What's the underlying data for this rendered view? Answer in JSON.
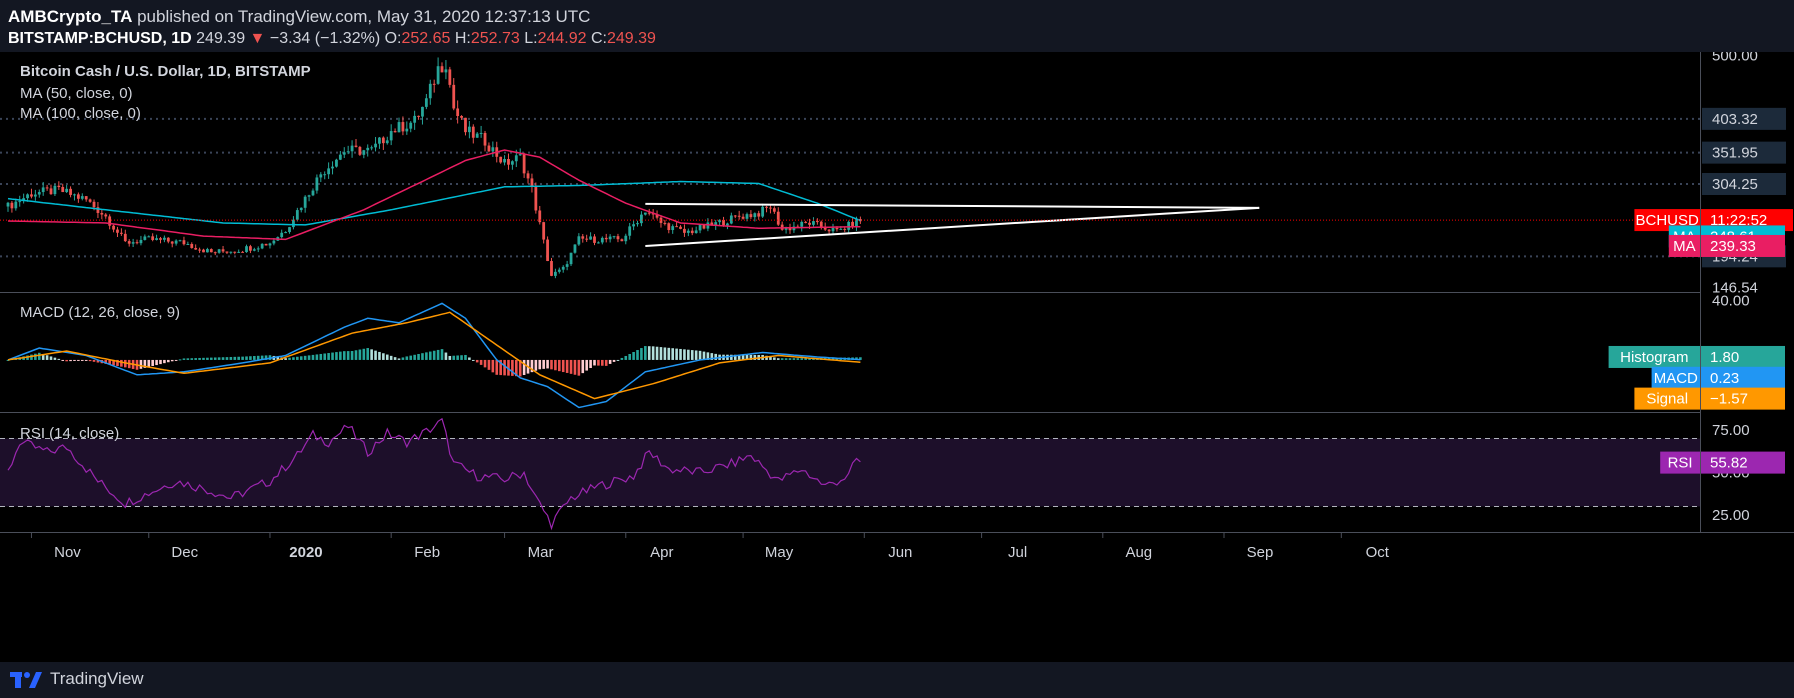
{
  "header": {
    "author": "AMBCrypto_TA",
    "published_text": "published on TradingView.com, May 31, 2020 12:37:13 UTC",
    "symbol": "BITSTAMP:BCHUSD, 1D",
    "last": "249.39",
    "down_arrow": "▼",
    "change": "−3.34 (−1.32%)",
    "o_label": "O:",
    "o_value": "252.65",
    "h_label": "H:",
    "h_value": "252.73",
    "l_label": "L:",
    "l_value": "244.92",
    "c_label": "C:",
    "c_value": "249.39"
  },
  "footer": {
    "brand": "TradingView",
    "logo_icon": "tradingview-logo-icon"
  },
  "colors": {
    "background": "#131722",
    "grid": "#2a2e39",
    "up": "#26a69a",
    "down": "#ef5350",
    "ma50": "#e91e63",
    "ma100": "#00bcd4",
    "macd": "#2196f3",
    "signal": "#ff9800",
    "hist_pos": "#26a69a",
    "hist_neg": "#ef5350",
    "rsi": "#9c27b0",
    "rsi_band": "#1d0f2a",
    "trendline": "#ffffff",
    "price_line": "#ff0000"
  },
  "chart_data": {
    "type": "candlestick",
    "title": "Bitcoin Cash / U.S. Dollar, 1D, BITSTAMP",
    "x_axis_labels": [
      "Nov",
      "Dec",
      "2020",
      "Feb",
      "Mar",
      "Apr",
      "May",
      "Jun",
      "Jul",
      "Aug",
      "Sep",
      "Oct"
    ],
    "x_axis_bold": [
      "2020"
    ],
    "price_pane": {
      "indicators": [
        "MA (50, close, 0)",
        "MA (100, close, 0)"
      ],
      "y_ticks": [
        "500.00",
        "403.32",
        "351.95",
        "304.25",
        "194.24",
        "146.54"
      ],
      "grid_levels": [
        403.32,
        351.95,
        304.25,
        194.24
      ],
      "ylim": [
        140,
        505
      ],
      "close_anchors": [
        {
          "d": "2019-10-26",
          "v": 270
        },
        {
          "d": "2019-11-01",
          "v": 290
        },
        {
          "d": "2019-11-08",
          "v": 295
        },
        {
          "d": "2019-11-15",
          "v": 280
        },
        {
          "d": "2019-11-20",
          "v": 255
        },
        {
          "d": "2019-11-25",
          "v": 215
        },
        {
          "d": "2019-12-01",
          "v": 220
        },
        {
          "d": "2019-12-10",
          "v": 215
        },
        {
          "d": "2019-12-17",
          "v": 200
        },
        {
          "d": "2019-12-25",
          "v": 205
        },
        {
          "d": "2020-01-01",
          "v": 215
        },
        {
          "d": "2020-01-05",
          "v": 235
        },
        {
          "d": "2020-01-14",
          "v": 320
        },
        {
          "d": "2020-01-20",
          "v": 355
        },
        {
          "d": "2020-01-27",
          "v": 355
        },
        {
          "d": "2020-02-01",
          "v": 385
        },
        {
          "d": "2020-02-07",
          "v": 400
        },
        {
          "d": "2020-02-10",
          "v": 430
        },
        {
          "d": "2020-02-13",
          "v": 480
        },
        {
          "d": "2020-02-15",
          "v": 490
        },
        {
          "d": "2020-02-17",
          "v": 420
        },
        {
          "d": "2020-02-20",
          "v": 385
        },
        {
          "d": "2020-02-25",
          "v": 370
        },
        {
          "d": "2020-03-01",
          "v": 335
        },
        {
          "d": "2020-03-05",
          "v": 345
        },
        {
          "d": "2020-03-08",
          "v": 295
        },
        {
          "d": "2020-03-12",
          "v": 190
        },
        {
          "d": "2020-03-13",
          "v": 165
        },
        {
          "d": "2020-03-16",
          "v": 175
        },
        {
          "d": "2020-03-20",
          "v": 220
        },
        {
          "d": "2020-03-31",
          "v": 220
        },
        {
          "d": "2020-04-06",
          "v": 265
        },
        {
          "d": "2020-04-10",
          "v": 245
        },
        {
          "d": "2020-04-16",
          "v": 230
        },
        {
          "d": "2020-04-22",
          "v": 240
        },
        {
          "d": "2020-04-30",
          "v": 255
        },
        {
          "d": "2020-05-05",
          "v": 260
        },
        {
          "d": "2020-05-08",
          "v": 270
        },
        {
          "d": "2020-05-11",
          "v": 235
        },
        {
          "d": "2020-05-18",
          "v": 245
        },
        {
          "d": "2020-05-25",
          "v": 232
        },
        {
          "d": "2020-05-31",
          "v": 249.39
        }
      ],
      "ma50_anchors": [
        {
          "d": "2019-10-26",
          "v": 248
        },
        {
          "d": "2019-11-20",
          "v": 245
        },
        {
          "d": "2019-12-15",
          "v": 225
        },
        {
          "d": "2020-01-05",
          "v": 220
        },
        {
          "d": "2020-01-25",
          "v": 265
        },
        {
          "d": "2020-02-20",
          "v": 340
        },
        {
          "d": "2020-03-01",
          "v": 356
        },
        {
          "d": "2020-03-10",
          "v": 345
        },
        {
          "d": "2020-03-20",
          "v": 310
        },
        {
          "d": "2020-04-01",
          "v": 275
        },
        {
          "d": "2020-04-15",
          "v": 245
        },
        {
          "d": "2020-05-05",
          "v": 237
        },
        {
          "d": "2020-05-31",
          "v": 239.33
        }
      ],
      "ma100_anchors": [
        {
          "d": "2019-10-26",
          "v": 282
        },
        {
          "d": "2019-11-20",
          "v": 265
        },
        {
          "d": "2019-12-20",
          "v": 245
        },
        {
          "d": "2020-01-10",
          "v": 242
        },
        {
          "d": "2020-02-01",
          "v": 265
        },
        {
          "d": "2020-03-01",
          "v": 300
        },
        {
          "d": "2020-03-20",
          "v": 302
        },
        {
          "d": "2020-04-15",
          "v": 308
        },
        {
          "d": "2020-05-05",
          "v": 305
        },
        {
          "d": "2020-05-20",
          "v": 275
        },
        {
          "d": "2020-05-31",
          "v": 248.61
        }
      ],
      "trendlines": [
        {
          "from": {
            "d": "2020-04-06",
            "v": 274
          },
          "to": {
            "d": "2020-09-10",
            "v": 268
          }
        },
        {
          "from": {
            "d": "2020-04-06",
            "v": 210
          },
          "to": {
            "d": "2020-09-10",
            "v": 268
          }
        }
      ],
      "price_line": 249.39,
      "labels": [
        {
          "text": "BCHUSD",
          "value": "11:22:52",
          "bg": "#ff0000",
          "y": 249.39
        },
        {
          "text": "MA",
          "value": "248.61",
          "bg": "#00bcd4",
          "y": 224.5
        },
        {
          "text": "MA",
          "value": "239.33",
          "bg": "#e91e63",
          "y": 210
        }
      ]
    },
    "macd_pane": {
      "indicator": "MACD (12, 26, close, 9)",
      "y_ticks": [
        "40.00"
      ],
      "ylim": [
        -35,
        45
      ],
      "macd_anchors": [
        {
          "d": "2019-10-26",
          "v": 0
        },
        {
          "d": "2019-11-03",
          "v": 8
        },
        {
          "d": "2019-11-15",
          "v": 3
        },
        {
          "d": "2019-11-28",
          "v": -10
        },
        {
          "d": "2019-12-10",
          "v": -8
        },
        {
          "d": "2019-12-25",
          "v": -2
        },
        {
          "d": "2020-01-05",
          "v": 3
        },
        {
          "d": "2020-01-20",
          "v": 22
        },
        {
          "d": "2020-01-26",
          "v": 28
        },
        {
          "d": "2020-02-03",
          "v": 25
        },
        {
          "d": "2020-02-14",
          "v": 38
        },
        {
          "d": "2020-02-20",
          "v": 28
        },
        {
          "d": "2020-02-28",
          "v": 0
        },
        {
          "d": "2020-03-05",
          "v": -12
        },
        {
          "d": "2020-03-12",
          "v": -18
        },
        {
          "d": "2020-03-20",
          "v": -32
        },
        {
          "d": "2020-03-27",
          "v": -28
        },
        {
          "d": "2020-04-06",
          "v": -8
        },
        {
          "d": "2020-04-20",
          "v": 0
        },
        {
          "d": "2020-05-06",
          "v": 5
        },
        {
          "d": "2020-05-20",
          "v": 2
        },
        {
          "d": "2020-05-31",
          "v": 0.23
        }
      ],
      "signal_anchors": [
        {
          "d": "2019-10-26",
          "v": 0
        },
        {
          "d": "2019-11-10",
          "v": 6
        },
        {
          "d": "2019-11-25",
          "v": -2
        },
        {
          "d": "2019-12-10",
          "v": -9
        },
        {
          "d": "2020-01-01",
          "v": -2
        },
        {
          "d": "2020-01-22",
          "v": 18
        },
        {
          "d": "2020-02-05",
          "v": 25
        },
        {
          "d": "2020-02-16",
          "v": 32
        },
        {
          "d": "2020-02-28",
          "v": 10
        },
        {
          "d": "2020-03-10",
          "v": -10
        },
        {
          "d": "2020-03-24",
          "v": -26
        },
        {
          "d": "2020-04-08",
          "v": -16
        },
        {
          "d": "2020-04-25",
          "v": -2
        },
        {
          "d": "2020-05-10",
          "v": 3
        },
        {
          "d": "2020-05-31",
          "v": -1.57
        }
      ],
      "labels": [
        {
          "text": "Histogram",
          "value": "1.80",
          "bg": "#26a69a",
          "y": 2
        },
        {
          "text": "MACD",
          "value": "0.23",
          "bg": "#2196f3",
          "y": -12
        },
        {
          "text": "Signal",
          "value": "−1.57",
          "bg": "#ff9800",
          "y": -26
        }
      ]
    },
    "rsi_pane": {
      "indicator": "RSI (14, close)",
      "y_ticks": [
        "75.00",
        "50.00",
        "25.00"
      ],
      "bands": [
        70,
        30
      ],
      "ylim": [
        15,
        85
      ],
      "rsi_anchors": [
        {
          "d": "2019-10-26",
          "v": 50
        },
        {
          "d": "2019-10-29",
          "v": 68
        },
        {
          "d": "2019-11-05",
          "v": 62
        },
        {
          "d": "2019-11-10",
          "v": 65
        },
        {
          "d": "2019-11-18",
          "v": 45
        },
        {
          "d": "2019-11-25",
          "v": 32
        },
        {
          "d": "2019-12-01",
          "v": 38
        },
        {
          "d": "2019-12-08",
          "v": 45
        },
        {
          "d": "2019-12-16",
          "v": 40
        },
        {
          "d": "2019-12-22",
          "v": 35
        },
        {
          "d": "2020-01-01",
          "v": 45
        },
        {
          "d": "2020-01-08",
          "v": 60
        },
        {
          "d": "2020-01-12",
          "v": 72
        },
        {
          "d": "2020-01-16",
          "v": 68
        },
        {
          "d": "2020-01-21",
          "v": 77
        },
        {
          "d": "2020-01-26",
          "v": 62
        },
        {
          "d": "2020-01-31",
          "v": 73
        },
        {
          "d": "2020-02-05",
          "v": 68
        },
        {
          "d": "2020-02-10",
          "v": 74
        },
        {
          "d": "2020-02-14",
          "v": 80
        },
        {
          "d": "2020-02-17",
          "v": 55
        },
        {
          "d": "2020-02-23",
          "v": 48
        },
        {
          "d": "2020-03-01",
          "v": 46
        },
        {
          "d": "2020-03-06",
          "v": 50
        },
        {
          "d": "2020-03-09",
          "v": 35
        },
        {
          "d": "2020-03-13",
          "v": 20
        },
        {
          "d": "2020-03-18",
          "v": 35
        },
        {
          "d": "2020-03-25",
          "v": 42
        },
        {
          "d": "2020-04-03",
          "v": 48
        },
        {
          "d": "2020-04-07",
          "v": 62
        },
        {
          "d": "2020-04-12",
          "v": 52
        },
        {
          "d": "2020-04-20",
          "v": 50
        },
        {
          "d": "2020-04-28",
          "v": 55
        },
        {
          "d": "2020-05-03",
          "v": 60
        },
        {
          "d": "2020-05-10",
          "v": 45
        },
        {
          "d": "2020-05-16",
          "v": 52
        },
        {
          "d": "2020-05-22",
          "v": 42
        },
        {
          "d": "2020-05-28",
          "v": 48
        },
        {
          "d": "2020-05-30",
          "v": 58
        },
        {
          "d": "2020-05-31",
          "v": 55.82
        }
      ],
      "labels": [
        {
          "text": "RSI",
          "value": "55.82",
          "bg": "#9c27b0",
          "y": 55.82
        }
      ]
    }
  }
}
